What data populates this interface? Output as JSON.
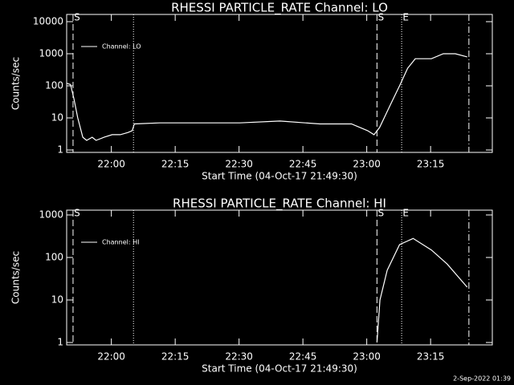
{
  "chart_data": [
    {
      "type": "line",
      "title": "RHESSI PARTICLE_RATE Channel: LO",
      "xlabel": "Start Time (04-Oct-17 21:49:30)",
      "ylabel": "Counts/sec",
      "log_y": true,
      "ylim": [
        1,
        10000
      ],
      "yticks": [
        1,
        10,
        100,
        1000,
        10000
      ],
      "xlim": [
        1309.5,
        1409.5
      ],
      "xticks": [
        {
          "value": 1320,
          "label": "22:00"
        },
        {
          "value": 1335,
          "label": "22:15"
        },
        {
          "value": 1350,
          "label": "22:30"
        },
        {
          "value": 1365,
          "label": "22:45"
        },
        {
          "value": 1380,
          "label": "23:00"
        },
        {
          "value": 1395,
          "label": "23:15"
        }
      ],
      "vlines": [
        {
          "x": 1311,
          "style": "dashed",
          "label": "S"
        },
        {
          "x": 1325.2,
          "style": "dotted"
        },
        {
          "x": 1382.4,
          "style": "dashed",
          "label": "S"
        },
        {
          "x": 1388.2,
          "style": "dotted",
          "label": "E"
        },
        {
          "x": 1404,
          "style": "dashdot"
        }
      ],
      "legend": "upper left",
      "series": [
        {
          "name": "Channel: LO",
          "color": "#ffffff",
          "x": [
            1309.5,
            1310.4,
            1311.2,
            1312.1,
            1313.3,
            1314.2,
            1315.5,
            1316.4,
            1318.3,
            1320.2,
            1322.1,
            1323.9,
            1324.9,
            1325.4,
            1331.4,
            1340.8,
            1350.2,
            1359.6,
            1369,
            1376.4,
            1380.2,
            1381.7,
            1383,
            1385.8,
            1387.7,
            1389.6,
            1391.4,
            1395.2,
            1398,
            1400.8,
            1403.6
          ],
          "values": [
            120,
            110,
            40,
            10,
            2.5,
            2,
            2.5,
            2,
            2.5,
            3,
            3,
            3.5,
            4,
            6.5,
            7,
            7,
            7,
            8,
            6.5,
            6.5,
            4,
            3,
            5,
            30,
            100,
            350,
            700,
            700,
            1000,
            1000,
            800
          ]
        }
      ]
    },
    {
      "type": "line",
      "title": "RHESSI PARTICLE_RATE Channel: HI",
      "xlabel": "Start Time (04-Oct-17 21:49:30)",
      "ylabel": "Counts/sec",
      "log_y": true,
      "ylim": [
        1,
        1000
      ],
      "yticks": [
        1,
        10,
        100,
        1000
      ],
      "xlim": [
        1309.5,
        1409.5
      ],
      "xticks": [
        {
          "value": 1320,
          "label": "22:00"
        },
        {
          "value": 1335,
          "label": "22:15"
        },
        {
          "value": 1350,
          "label": "22:30"
        },
        {
          "value": 1365,
          "label": "22:45"
        },
        {
          "value": 1380,
          "label": "23:00"
        },
        {
          "value": 1395,
          "label": "23:15"
        }
      ],
      "vlines": [
        {
          "x": 1311,
          "style": "dashed",
          "label": "S"
        },
        {
          "x": 1325.2,
          "style": "dotted"
        },
        {
          "x": 1382.4,
          "style": "dashed",
          "label": "S"
        },
        {
          "x": 1388.2,
          "style": "dotted",
          "label": "E"
        },
        {
          "x": 1404,
          "style": "dashdot"
        }
      ],
      "legend": "upper left",
      "series": [
        {
          "name": "Channel: HI",
          "color": "#ffffff",
          "x": [
            1382.4,
            1383.1,
            1384.8,
            1387.7,
            1390.9,
            1395.2,
            1398.9,
            1403.6
          ],
          "values": [
            1,
            10,
            50,
            200,
            280,
            150,
            70,
            20
          ]
        }
      ]
    }
  ],
  "footer": "2-Sep-2022 01:39"
}
